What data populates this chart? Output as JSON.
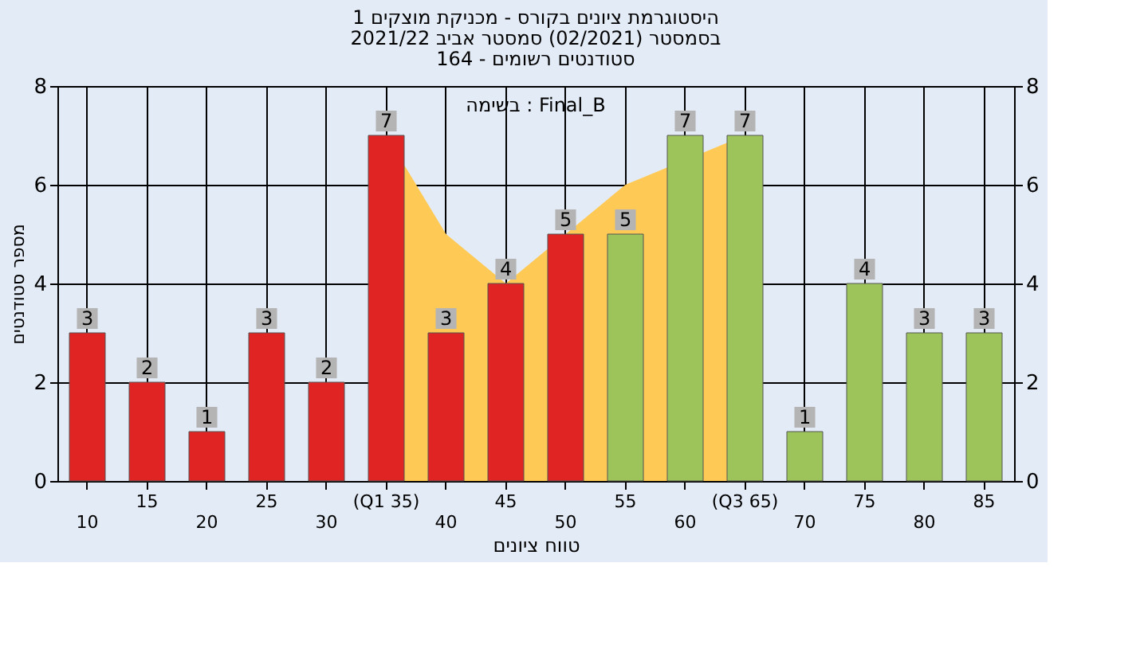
{
  "chart_data": {
    "type": "bar",
    "title": [
      "היסטוגרמת ציונים בקורס - מכניקת מוצקים 1",
      "בסמסטר  (02/2021)  סמסטר אביב 2021/22",
      "סטודנטים רשומים - 164"
    ],
    "xlabel": "טווח ציונים",
    "ylabel": "מספר סטודנטים",
    "categories": [
      "10",
      "15",
      "20",
      "25",
      "30",
      "(Q1 35)",
      "40",
      "45",
      "50",
      "55",
      "60",
      "(Q3 65)",
      "70",
      "75",
      "80",
      "85"
    ],
    "series": [
      {
        "type": "area",
        "color": "#ffc955",
        "values": [
          null,
          null,
          null,
          null,
          null,
          7,
          5,
          4,
          5,
          6,
          null,
          7,
          null,
          null,
          null,
          null
        ]
      },
      {
        "value_labels": [
          "3",
          "2",
          "1",
          "3",
          "2",
          "7",
          "3",
          "4",
          "5",
          "5",
          "7",
          "7",
          "1",
          "4",
          "3",
          "3"
        ],
        "colors": [
          "#e02424",
          "#e02424",
          "#e02424",
          "#e02424",
          "#e02424",
          "#e02424",
          "#e02424",
          "#e02424",
          "#e02424",
          "#9dc45a",
          "#9dc45a",
          "#9dc45a",
          "#9dc45a",
          "#9dc45a",
          "#9dc45a",
          "#9dc45a"
        ],
        "values": [
          3,
          2,
          1,
          3,
          2,
          7,
          3,
          4,
          5,
          5,
          7,
          7,
          1,
          4,
          3,
          3
        ]
      }
    ],
    "annotations": [
      "בשימה : Final_B"
    ],
    "ylim": [
      0,
      8
    ],
    "yticks": [
      0,
      2,
      4,
      6,
      8
    ],
    "y2lim": [
      0,
      8
    ],
    "y2ticks": [
      0,
      2,
      4,
      6,
      8
    ],
    "grid": true
  }
}
